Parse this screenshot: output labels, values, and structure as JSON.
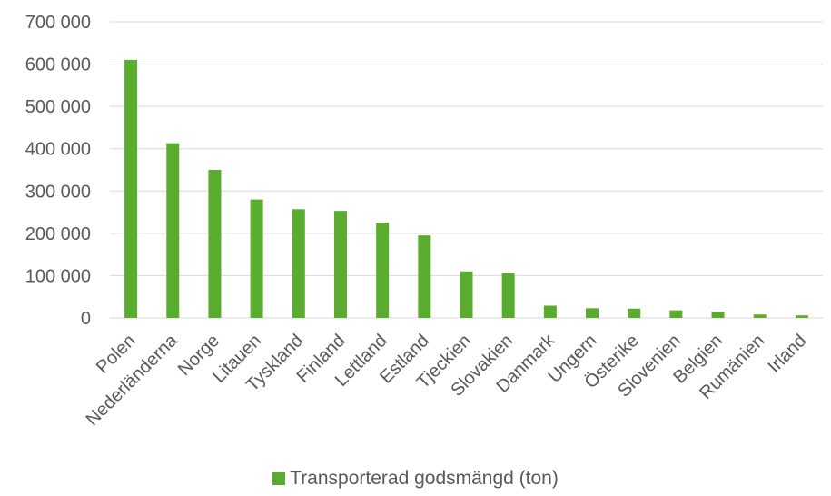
{
  "chart_data": {
    "type": "bar",
    "categories": [
      "Polen",
      "Nederländerna",
      "Norge",
      "Litauen",
      "Tyskland",
      "Finland",
      "Lettland",
      "Estland",
      "Tjeckien",
      "Slovakien",
      "Danmark",
      "Ungern",
      "Österike",
      "Slovenien",
      "Belgien",
      "Rumänien",
      "Irland"
    ],
    "series": [
      {
        "name": "Transporterad godsmängd (ton)",
        "values": [
          610000,
          413000,
          350000,
          280000,
          257000,
          253000,
          225000,
          195000,
          110000,
          106000,
          29000,
          23000,
          22000,
          18000,
          15000,
          8000,
          6000
        ]
      }
    ],
    "yticks": [
      "0",
      "100 000",
      "200 000",
      "300 000",
      "400 000",
      "500 000",
      "600 000",
      "700 000"
    ],
    "ylim": [
      0,
      700000
    ],
    "grid": true,
    "legend_position": "bottom",
    "bar_color": "#5aac2f",
    "grid_color": "#d9d9d9"
  }
}
